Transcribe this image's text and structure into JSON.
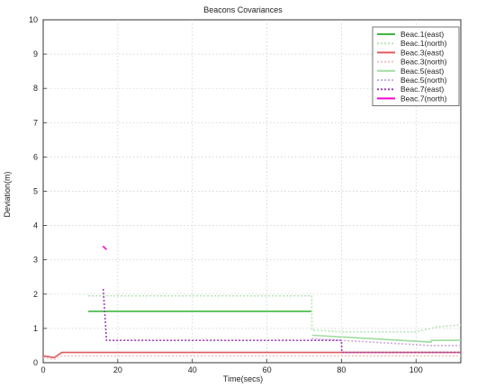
{
  "chart_data": {
    "type": "line",
    "title": "Beacons Covariances",
    "xlabel": "Time(secs)",
    "ylabel": "Deviation(m)",
    "xlim": [
      0,
      112
    ],
    "ylim": [
      0,
      10
    ],
    "xticks": [
      0,
      20,
      40,
      60,
      80,
      100
    ],
    "yticks": [
      0,
      1,
      2,
      3,
      4,
      5,
      6,
      7,
      8,
      9,
      10
    ],
    "grid": true,
    "legend_position": "top-right",
    "series": [
      {
        "name": "Beac.1(east)",
        "color": "#3db53d",
        "dash": "",
        "x": [
          12,
          12.1,
          72,
          72.1,
          112
        ],
        "y": [
          null,
          1.5,
          1.5,
          null,
          null
        ]
      },
      {
        "name": "Beac.1(north)",
        "color": "#b8e3b8",
        "dash": "2,2",
        "x": [
          12,
          12.1,
          72,
          72.1,
          80,
          100,
          106,
          112
        ],
        "y": [
          null,
          1.95,
          1.95,
          0.95,
          0.9,
          0.9,
          1.05,
          1.1
        ]
      },
      {
        "name": "Beac.3(east)",
        "color": "#e05a5a",
        "dash": "",
        "x": [
          0,
          3,
          5,
          60,
          80,
          112
        ],
        "y": [
          0.2,
          0.15,
          0.3,
          0.3,
          0.3,
          0.3
        ]
      },
      {
        "name": "Beac.3(north)",
        "color": "#f4c0c0",
        "dash": "2,2",
        "x": [
          0,
          3,
          5,
          60,
          80,
          112
        ],
        "y": [
          0.15,
          0.1,
          0.2,
          0.2,
          0.2,
          0.2
        ]
      },
      {
        "name": "Beac.5(east)",
        "color": "#9fdc9f",
        "dash": "",
        "x": [
          72,
          72.1,
          104,
          104.1,
          112
        ],
        "y": [
          null,
          0.8,
          0.6,
          0.65,
          0.65
        ]
      },
      {
        "name": "Beac.5(north)",
        "color": "#c9a8d9",
        "dash": "2,2",
        "x": [
          72,
          80,
          104,
          112
        ],
        "y": [
          0.7,
          0.65,
          0.5,
          0.5
        ]
      },
      {
        "name": "Beac.7(east)",
        "color": "#a040b8",
        "dash": "2,2",
        "x": [
          16,
          16.1,
          17,
          80,
          80.1,
          112
        ],
        "y": [
          null,
          2.15,
          0.65,
          0.65,
          0.3,
          0.3
        ]
      },
      {
        "name": "Beac.7(north)",
        "color": "#ff00cc",
        "dash": "",
        "x": [
          16,
          16.5,
          17
        ],
        "y": [
          3.4,
          3.35,
          3.3
        ]
      }
    ]
  }
}
